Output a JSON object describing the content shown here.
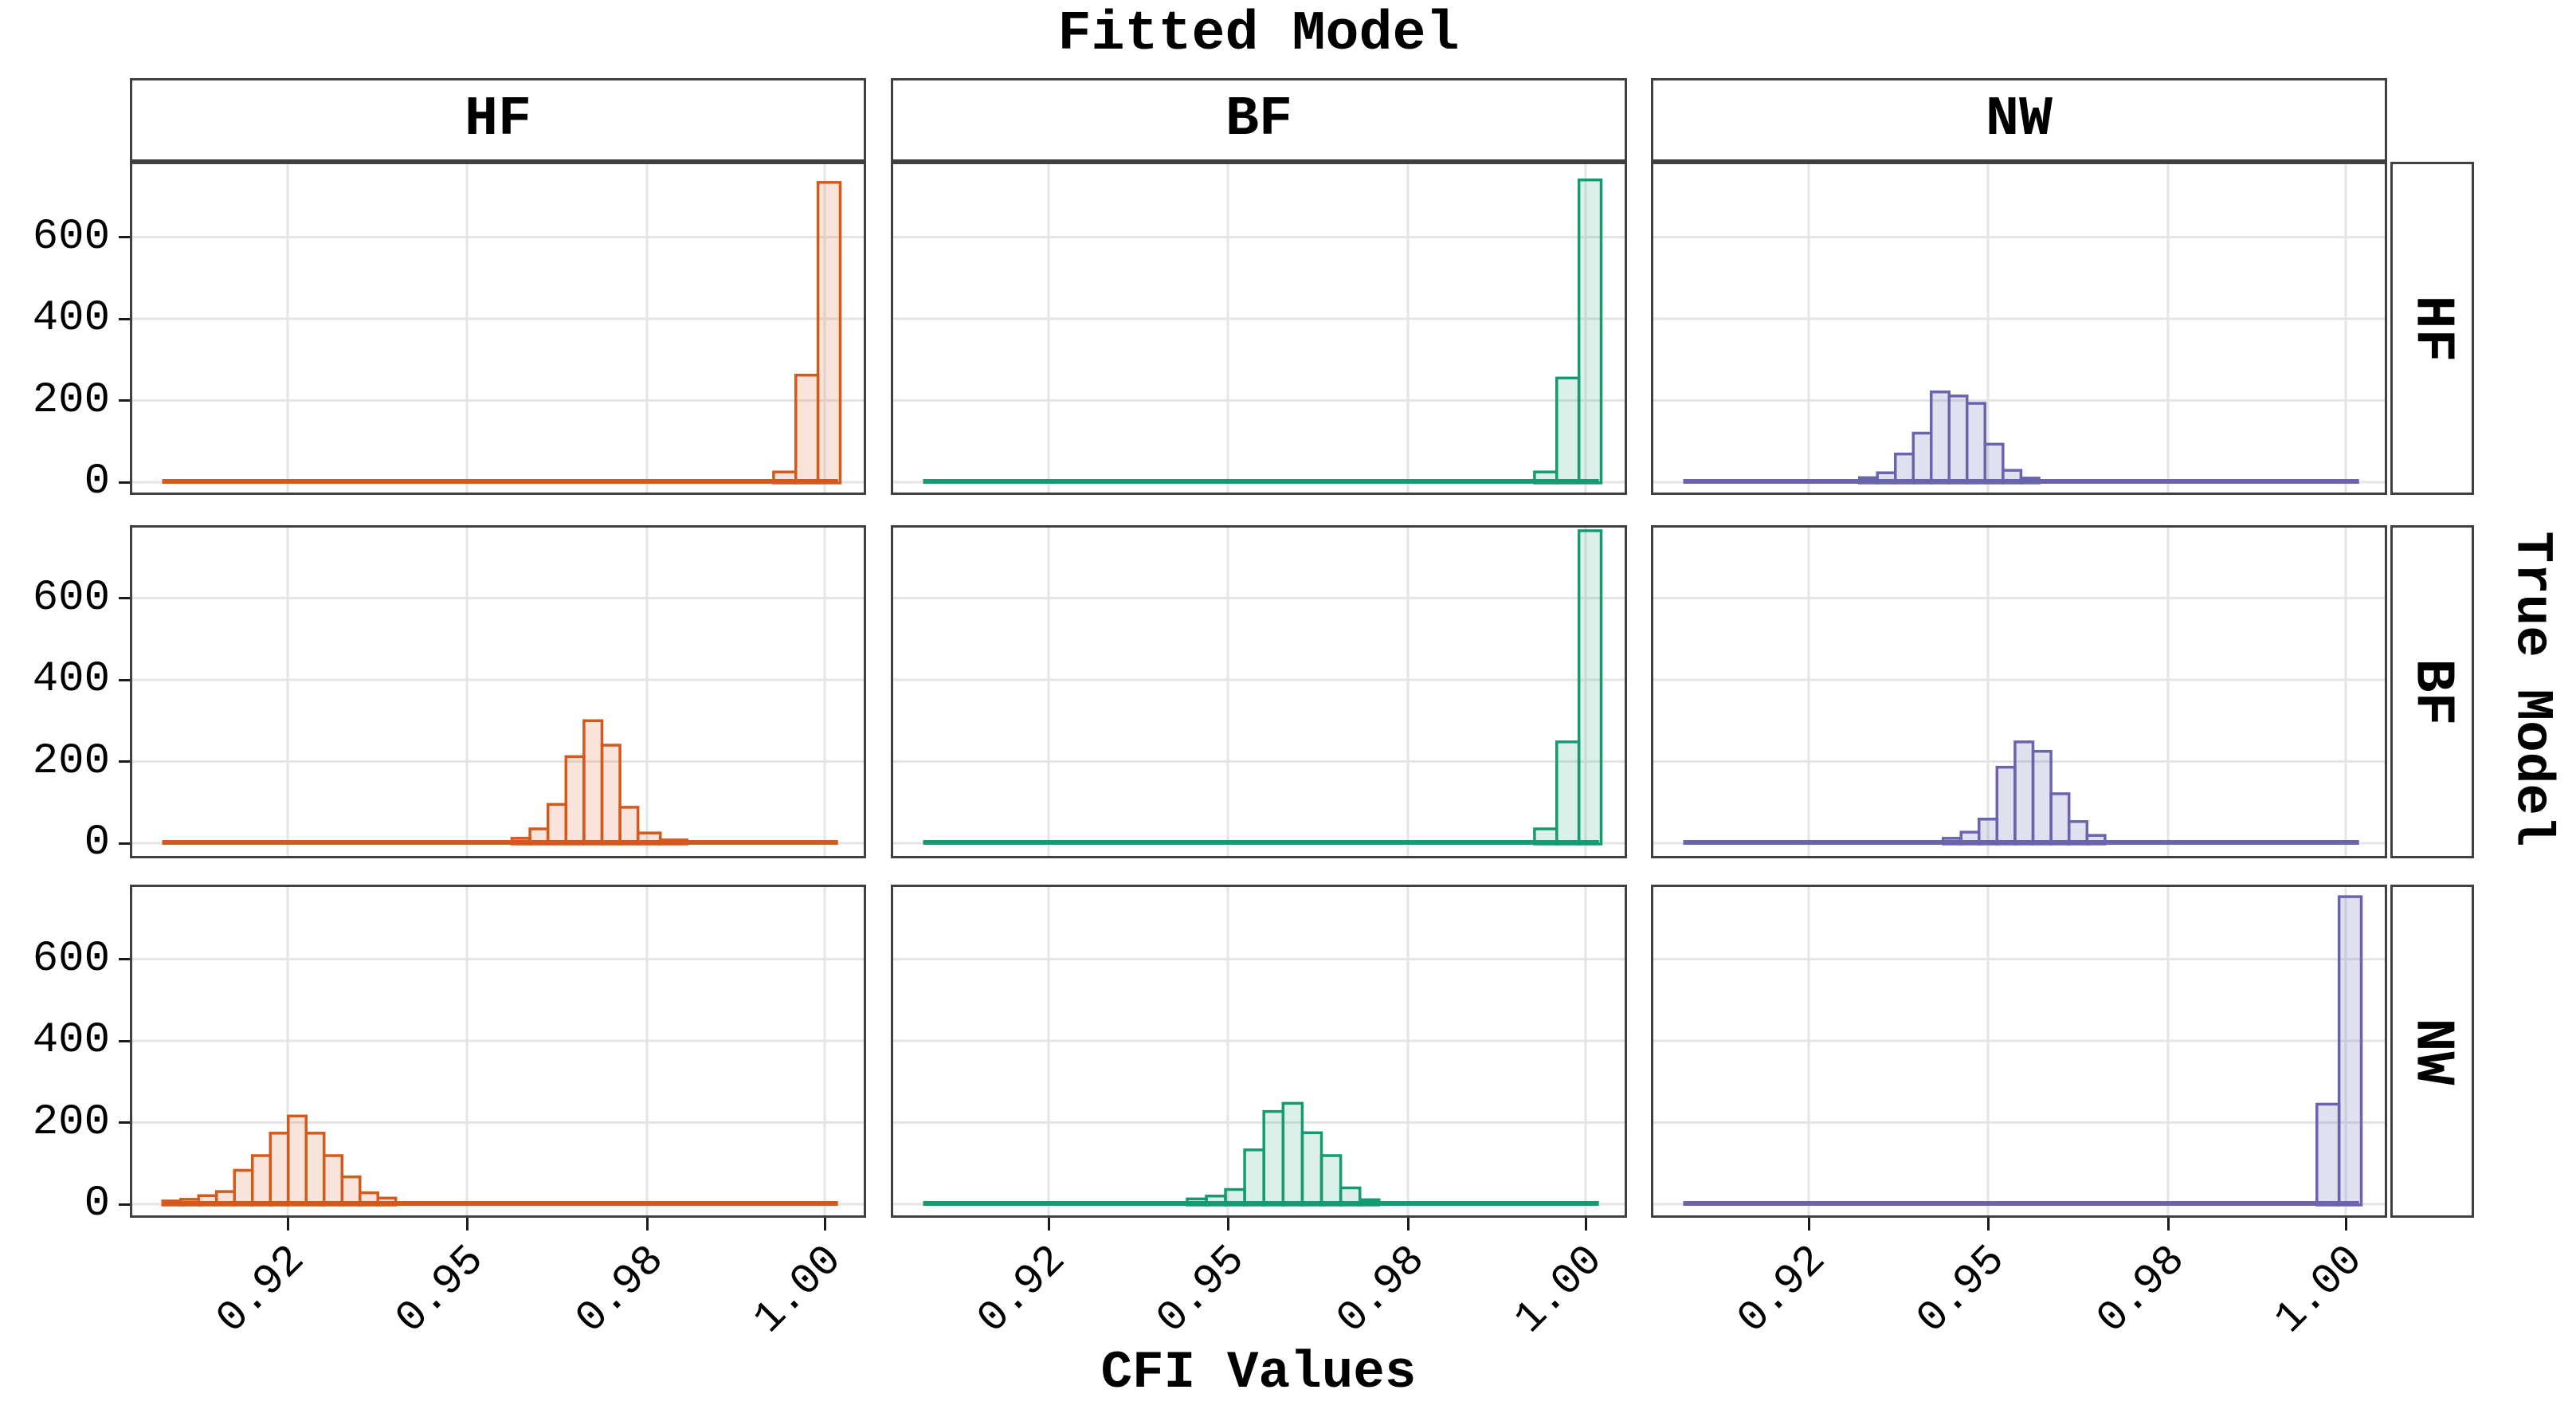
{
  "figure": {
    "title": "Fitted Model",
    "x_axis_title": "CFI Values",
    "right_axis_title": "True Model"
  },
  "chart_data": {
    "type": "histogram-grid",
    "title": "Fitted Model",
    "xlabel": "CFI Values",
    "ylabel": "",
    "facet_columns_title": "Fitted Model",
    "facet_rows_title": "True Model",
    "columns": [
      "HF",
      "BF",
      "NW"
    ],
    "rows": [
      "HF",
      "BF",
      "NW"
    ],
    "x_ticks": [
      0.92,
      0.95,
      0.98,
      1.0
    ],
    "x_tick_labels": [
      "0.92",
      "0.95",
      "0.98",
      "1.00"
    ],
    "y_ticks": [
      0,
      200,
      400,
      600
    ],
    "y_tick_labels": [
      "0",
      "200",
      "400",
      "600"
    ],
    "ylim": [
      0,
      780
    ],
    "grid": "major",
    "legend": "none",
    "colors": {
      "HF": {
        "stroke": "#D4591B",
        "fill": "rgba(212,89,27,0.16)"
      },
      "BF": {
        "stroke": "#169A72",
        "fill": "rgba(22,154,114,0.15)"
      },
      "NW": {
        "stroke": "#6A64AE",
        "fill": "rgba(106,100,174,0.20)"
      }
    },
    "baseline_span": [
      0.899,
      1.0015
    ],
    "panels": [
      {
        "row": "HF",
        "col": "HF",
        "bin_width": 0.0025,
        "bins": [
          [
            0.9955,
            25
          ],
          [
            0.998,
            262
          ],
          [
            1.0005,
            734
          ]
        ]
      },
      {
        "row": "HF",
        "col": "BF",
        "bin_width": 0.0025,
        "bins": [
          [
            0.9955,
            25
          ],
          [
            0.998,
            255
          ],
          [
            1.0005,
            740
          ]
        ]
      },
      {
        "row": "HF",
        "col": "NW",
        "bin_width": 0.003,
        "bins": [
          [
            0.93,
            11
          ],
          [
            0.933,
            23
          ],
          [
            0.936,
            69
          ],
          [
            0.939,
            120
          ],
          [
            0.942,
            221
          ],
          [
            0.945,
            211
          ],
          [
            0.948,
            193
          ],
          [
            0.951,
            93
          ],
          [
            0.954,
            29
          ],
          [
            0.957,
            10
          ]
        ]
      },
      {
        "row": "BF",
        "col": "HF",
        "bin_width": 0.003,
        "bins": [
          [
            0.959,
            12
          ],
          [
            0.962,
            35
          ],
          [
            0.965,
            95
          ],
          [
            0.968,
            212
          ],
          [
            0.971,
            300
          ],
          [
            0.974,
            240
          ],
          [
            0.977,
            88
          ],
          [
            0.98,
            25
          ],
          [
            0.983,
            8
          ]
        ]
      },
      {
        "row": "BF",
        "col": "BF",
        "bin_width": 0.0025,
        "bins": [
          [
            0.9955,
            35
          ],
          [
            0.998,
            248
          ],
          [
            1.0005,
            765
          ]
        ]
      },
      {
        "row": "BF",
        "col": "NW",
        "bin_width": 0.003,
        "bins": [
          [
            0.944,
            12
          ],
          [
            0.947,
            27
          ],
          [
            0.95,
            59
          ],
          [
            0.953,
            186
          ],
          [
            0.956,
            248
          ],
          [
            0.959,
            225
          ],
          [
            0.962,
            121
          ],
          [
            0.965,
            53
          ],
          [
            0.968,
            19
          ]
        ]
      },
      {
        "row": "NW",
        "col": "HF",
        "bin_width": 0.003,
        "bins": [
          [
            0.9006,
            8
          ],
          [
            0.9036,
            12
          ],
          [
            0.9066,
            21
          ],
          [
            0.9096,
            31
          ],
          [
            0.9126,
            83
          ],
          [
            0.9156,
            119
          ],
          [
            0.9186,
            174
          ],
          [
            0.9216,
            216
          ],
          [
            0.9246,
            174
          ],
          [
            0.9276,
            119
          ],
          [
            0.9306,
            67
          ],
          [
            0.9336,
            28
          ],
          [
            0.9366,
            15
          ]
        ]
      },
      {
        "row": "NW",
        "col": "BF",
        "bin_width": 0.0032,
        "bins": [
          [
            0.9448,
            13
          ],
          [
            0.948,
            20
          ],
          [
            0.9512,
            36
          ],
          [
            0.9544,
            133
          ],
          [
            0.9576,
            227
          ],
          [
            0.9608,
            247
          ],
          [
            0.964,
            175
          ],
          [
            0.9672,
            119
          ],
          [
            0.9704,
            40
          ],
          [
            0.9736,
            11
          ]
        ]
      },
      {
        "row": "NW",
        "col": "NW",
        "bin_width": 0.0025,
        "bins": [
          [
            0.998,
            245
          ],
          [
            1.0005,
            753
          ]
        ]
      }
    ]
  }
}
